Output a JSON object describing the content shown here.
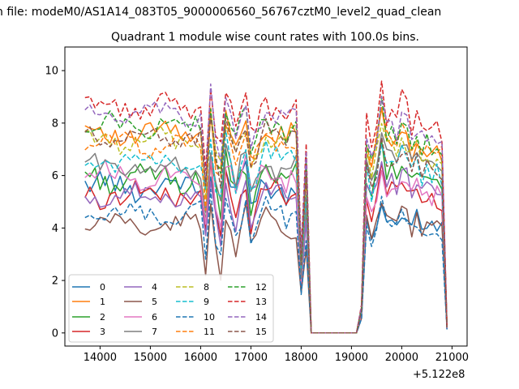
{
  "figure": {
    "suptitle": "n file: modeM0/AS1A14_083T05_9000006560_56767cztM0_level2_quad_clean",
    "offset_label": "+5.122e8"
  },
  "chart_data": {
    "type": "line",
    "title": "Quadrant 1 module wise count rates with 100.0s bins.",
    "xlabel": "",
    "ylabel": "",
    "x_offset": 512200000,
    "xlim": [
      13300,
      21300
    ],
    "ylim": [
      -0.5,
      10.9
    ],
    "xticks": [
      14000,
      15000,
      16000,
      17000,
      18000,
      19000,
      20000,
      21000
    ],
    "xtick_labels": [
      "14000",
      "15000",
      "16000",
      "17000",
      "18000",
      "19000",
      "20000",
      "21000"
    ],
    "yticks": [
      0,
      2,
      4,
      6,
      8,
      10
    ],
    "ytick_labels": [
      "0",
      "2",
      "4",
      "6",
      "8",
      "10"
    ],
    "grid": false,
    "legend": {
      "position": "lower-left",
      "ncol": 4
    },
    "x_segments": [
      {
        "from": 13700,
        "to": 17900,
        "step": 100
      },
      {
        "from": 18000,
        "to": 18200,
        "step": 100
      },
      {
        "from": 19100,
        "to": 20900,
        "step": 100
      }
    ],
    "dip_offsets": {
      "16100": -1.9,
      "16200": 0.9,
      "16300": -0.9,
      "16400": -1.6,
      "16500": 0.6,
      "16700": -0.8,
      "16900": 0.5,
      "17000": -1.0,
      "17100": -0.6,
      "17300": 0.4,
      "17700": -0.3
    },
    "tail": {
      "18000": 0.35,
      "18100": 0.82,
      "18200": 0.0
    },
    "burst": {
      "19100": 0,
      "19200": 0.12,
      "19300": 0.9,
      "19400": 0.78,
      "19500": 0.9,
      "19600": 1.08,
      "19700": 0.92,
      "19800": 0.96,
      "19900": 0.9,
      "20000": 1.0,
      "20100": 0.95,
      "20200": 0.88,
      "20300": 0.92,
      "20400": 0.87,
      "20500": 0.9,
      "20600": 0.86,
      "20700": 0.88,
      "20800": 0.85,
      "20900": 0.03
    },
    "series": [
      {
        "name": "0",
        "color": "#1f77b4",
        "dash": "solid",
        "base": 5.6,
        "amp": 0.4,
        "burst_level": 4.7
      },
      {
        "name": "1",
        "color": "#ff7f0e",
        "dash": "solid",
        "base": 7.6,
        "amp": 0.35,
        "burst_level": 7.8
      },
      {
        "name": "2",
        "color": "#2ca02c",
        "dash": "solid",
        "base": 5.9,
        "amp": 0.4,
        "burst_level": 6.6
      },
      {
        "name": "3",
        "color": "#d62728",
        "dash": "solid",
        "base": 5.3,
        "amp": 0.4,
        "burst_level": 5.8
      },
      {
        "name": "4",
        "color": "#9467bd",
        "dash": "solid",
        "base": 5.2,
        "amp": 0.35,
        "burst_level": 6.3
      },
      {
        "name": "5",
        "color": "#8c564b",
        "dash": "solid",
        "base": 4.1,
        "amp": 0.3,
        "burst_level": 4.6
      },
      {
        "name": "6",
        "color": "#e377c2",
        "dash": "solid",
        "base": 6.0,
        "amp": 0.35,
        "burst_level": 6.0
      },
      {
        "name": "7",
        "color": "#7f7f7f",
        "dash": "solid",
        "base": 6.3,
        "amp": 0.35,
        "burst_level": 7.3
      },
      {
        "name": "8",
        "color": "#bcbd22",
        "dash": "dashed",
        "base": 7.4,
        "amp": 0.35,
        "burst_level": 7.6
      },
      {
        "name": "9",
        "color": "#17becf",
        "dash": "dashed",
        "base": 6.6,
        "amp": 0.35,
        "burst_level": 6.9
      },
      {
        "name": "10",
        "color": "#1f77b4",
        "dash": "dashed",
        "base": 4.5,
        "amp": 0.3,
        "burst_level": 4.5
      },
      {
        "name": "11",
        "color": "#ff7f0e",
        "dash": "dashed",
        "base": 7.2,
        "amp": 0.35,
        "burst_level": 8.0
      },
      {
        "name": "12",
        "color": "#2ca02c",
        "dash": "dashed",
        "base": 7.9,
        "amp": 0.35,
        "burst_level": 8.1
      },
      {
        "name": "13",
        "color": "#d62728",
        "dash": "dashed",
        "base": 8.6,
        "amp": 0.35,
        "burst_level": 9.0
      },
      {
        "name": "14",
        "color": "#9467bd",
        "dash": "dashed",
        "base": 8.3,
        "amp": 0.3,
        "burst_level": 8.4
      },
      {
        "name": "15",
        "color": "#8c564b",
        "dash": "dashed",
        "base": 7.5,
        "amp": 0.3,
        "burst_level": 7.0
      }
    ]
  }
}
